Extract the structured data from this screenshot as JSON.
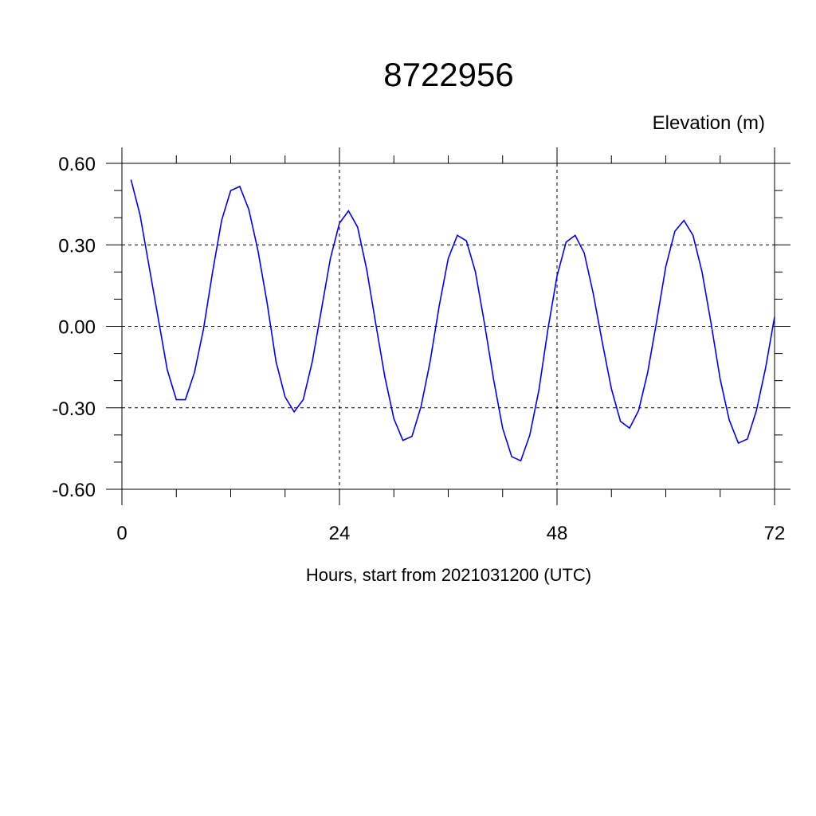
{
  "chart_data": {
    "type": "line",
    "title": "8722956",
    "subtitle": "Elevation (m)",
    "xlabel": "Hours, start from 2021031200 (UTC)",
    "ylabel": "",
    "xlim": [
      0,
      72
    ],
    "ylim": [
      -0.6,
      0.6
    ],
    "x_ticks": [
      0,
      24,
      48,
      72
    ],
    "x_tick_labels": [
      "0",
      "24",
      "48",
      "72"
    ],
    "y_ticks": [
      0.6,
      0.3,
      0.0,
      -0.3,
      -0.6
    ],
    "y_tick_labels": [
      "0.60",
      "0.30",
      "0.00",
      "-0.30",
      "-0.60"
    ],
    "grid": true,
    "line_color": "#0000ff",
    "series": [
      {
        "x": [
          1,
          2,
          3,
          4,
          5,
          6,
          7,
          8,
          9,
          10,
          11,
          12,
          13,
          14,
          15,
          16,
          17,
          18,
          19,
          20,
          21,
          22,
          23,
          24,
          25,
          26,
          27,
          28,
          29,
          30,
          31,
          32,
          33,
          34,
          35,
          36,
          37,
          38,
          39,
          40,
          41,
          42,
          43,
          44,
          45,
          46,
          47,
          48,
          49,
          50,
          51,
          52,
          53,
          54,
          55,
          56,
          57,
          58,
          59,
          60,
          61,
          62,
          63,
          64,
          65,
          66,
          67,
          68,
          69,
          70,
          71,
          72
        ],
        "values": [
          0.54,
          0.41,
          0.22,
          0.03,
          -0.16,
          -0.27,
          -0.27,
          -0.17,
          -0.01,
          0.2,
          0.39,
          0.5,
          0.515,
          0.43,
          0.28,
          0.09,
          -0.13,
          -0.26,
          -0.315,
          -0.27,
          -0.13,
          0.06,
          0.25,
          0.38,
          0.425,
          0.365,
          0.21,
          0.01,
          -0.185,
          -0.34,
          -0.42,
          -0.405,
          -0.295,
          -0.13,
          0.075,
          0.25,
          0.335,
          0.315,
          0.2,
          0.01,
          -0.195,
          -0.375,
          -0.48,
          -0.495,
          -0.4,
          -0.235,
          -0.01,
          0.185,
          0.31,
          0.335,
          0.27,
          0.12,
          -0.06,
          -0.23,
          -0.35,
          -0.375,
          -0.31,
          -0.17,
          0.02,
          0.22,
          0.35,
          0.39,
          0.335,
          0.2,
          0.01,
          -0.195,
          -0.345,
          -0.43,
          -0.415,
          -0.31,
          -0.155,
          0.035
        ]
      }
    ]
  }
}
